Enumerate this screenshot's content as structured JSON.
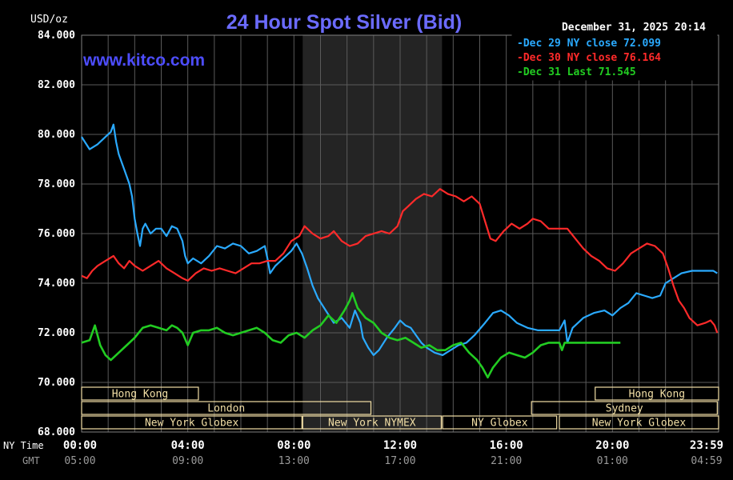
{
  "chart_data": {
    "type": "line",
    "title": "24 Hour Spot Silver (Bid)",
    "units_label": "USD/oz",
    "watermark": "www.kitco.com",
    "timestamp": "December 31, 2025 20:14",
    "ylim": [
      68,
      84
    ],
    "y_ticks": [
      84,
      82,
      80,
      78,
      76,
      74,
      72,
      70,
      68
    ],
    "y_tick_labels": [
      "84.000",
      "82.000",
      "80.000",
      "78.000",
      "76.000",
      "74.000",
      "72.000",
      "70.000",
      "68.000"
    ],
    "x_range_hours": [
      0,
      24
    ],
    "x_ticks_hours": [
      0,
      4,
      8,
      12,
      16,
      20,
      24
    ],
    "x_axis_ny_label": "NY Time",
    "x_axis_gmt_label": "GMT",
    "x_tick_labels_ny": [
      "00:00",
      "04:00",
      "08:00",
      "12:00",
      "16:00",
      "20:00",
      "23:59"
    ],
    "x_tick_labels_gmt": [
      "05:00",
      "09:00",
      "13:00",
      "17:00",
      "21:00",
      "01:00",
      "04:59"
    ],
    "shaded_range_hours": [
      8.33,
      13.58
    ],
    "colors": {
      "background": "#000000",
      "grid": "#5a5a5a",
      "axis_text": "#ffffff",
      "gmt_text": "#9a9a9a",
      "title": "#6b6bff",
      "shade": "#242424",
      "session_bar": "#f2dfa6"
    },
    "series": [
      {
        "name": "Dec 29",
        "legend": "Dec 29 NY close 72.099",
        "color": "#2aaaff",
        "points": [
          [
            0,
            79.9
          ],
          [
            0.3,
            79.4
          ],
          [
            0.6,
            79.6
          ],
          [
            0.9,
            79.9
          ],
          [
            1.1,
            80.1
          ],
          [
            1.2,
            80.4
          ],
          [
            1.3,
            79.7
          ],
          [
            1.4,
            79.2
          ],
          [
            1.6,
            78.6
          ],
          [
            1.8,
            78.0
          ],
          [
            1.9,
            77.5
          ],
          [
            2.0,
            76.6
          ],
          [
            2.1,
            76.0
          ],
          [
            2.2,
            75.5
          ],
          [
            2.3,
            76.2
          ],
          [
            2.4,
            76.4
          ],
          [
            2.6,
            76.0
          ],
          [
            2.8,
            76.2
          ],
          [
            3.0,
            76.2
          ],
          [
            3.2,
            75.9
          ],
          [
            3.4,
            76.3
          ],
          [
            3.6,
            76.2
          ],
          [
            3.8,
            75.7
          ],
          [
            3.9,
            75.1
          ],
          [
            4.0,
            74.8
          ],
          [
            4.2,
            75.0
          ],
          [
            4.5,
            74.8
          ],
          [
            4.8,
            75.1
          ],
          [
            5.1,
            75.5
          ],
          [
            5.4,
            75.4
          ],
          [
            5.7,
            75.6
          ],
          [
            6.0,
            75.5
          ],
          [
            6.3,
            75.2
          ],
          [
            6.6,
            75.3
          ],
          [
            6.9,
            75.5
          ],
          [
            7.0,
            75.0
          ],
          [
            7.1,
            74.4
          ],
          [
            7.3,
            74.7
          ],
          [
            7.6,
            75.0
          ],
          [
            7.9,
            75.3
          ],
          [
            8.1,
            75.6
          ],
          [
            8.3,
            75.2
          ],
          [
            8.5,
            74.6
          ],
          [
            8.7,
            73.9
          ],
          [
            8.9,
            73.4
          ],
          [
            9.2,
            72.9
          ],
          [
            9.5,
            72.4
          ],
          [
            9.8,
            72.6
          ],
          [
            10.1,
            72.2
          ],
          [
            10.3,
            72.9
          ],
          [
            10.5,
            72.4
          ],
          [
            10.6,
            71.8
          ],
          [
            10.8,
            71.4
          ],
          [
            11.0,
            71.1
          ],
          [
            11.2,
            71.3
          ],
          [
            11.5,
            71.8
          ],
          [
            11.8,
            72.2
          ],
          [
            12.0,
            72.5
          ],
          [
            12.2,
            72.3
          ],
          [
            12.4,
            72.2
          ],
          [
            12.6,
            71.9
          ],
          [
            12.8,
            71.6
          ],
          [
            13.0,
            71.4
          ],
          [
            13.3,
            71.2
          ],
          [
            13.6,
            71.1
          ],
          [
            13.9,
            71.3
          ],
          [
            14.2,
            71.5
          ],
          [
            14.5,
            71.6
          ],
          [
            14.8,
            71.9
          ],
          [
            15.2,
            72.4
          ],
          [
            15.5,
            72.8
          ],
          [
            15.8,
            72.9
          ],
          [
            16.1,
            72.7
          ],
          [
            16.4,
            72.4
          ],
          [
            16.8,
            72.2
          ],
          [
            17.2,
            72.1
          ],
          [
            17.6,
            72.1
          ],
          [
            18.0,
            72.1
          ],
          [
            18.2,
            72.5
          ],
          [
            18.3,
            71.6
          ],
          [
            18.5,
            72.2
          ],
          [
            18.9,
            72.6
          ],
          [
            19.3,
            72.8
          ],
          [
            19.7,
            72.9
          ],
          [
            20.0,
            72.7
          ],
          [
            20.3,
            73.0
          ],
          [
            20.6,
            73.2
          ],
          [
            20.9,
            73.6
          ],
          [
            21.2,
            73.5
          ],
          [
            21.5,
            73.4
          ],
          [
            21.8,
            73.5
          ],
          [
            22.0,
            74.0
          ],
          [
            22.3,
            74.2
          ],
          [
            22.6,
            74.4
          ],
          [
            23.0,
            74.5
          ],
          [
            23.4,
            74.5
          ],
          [
            23.8,
            74.5
          ],
          [
            23.95,
            74.4
          ]
        ]
      },
      {
        "name": "Dec 30",
        "legend": "Dec 30 NY close 76.164",
        "color": "#ff2a2a",
        "points": [
          [
            0,
            74.3
          ],
          [
            0.2,
            74.2
          ],
          [
            0.4,
            74.5
          ],
          [
            0.6,
            74.7
          ],
          [
            0.9,
            74.9
          ],
          [
            1.2,
            75.1
          ],
          [
            1.4,
            74.8
          ],
          [
            1.6,
            74.6
          ],
          [
            1.8,
            74.9
          ],
          [
            2.0,
            74.7
          ],
          [
            2.3,
            74.5
          ],
          [
            2.6,
            74.7
          ],
          [
            2.9,
            74.9
          ],
          [
            3.2,
            74.6
          ],
          [
            3.5,
            74.4
          ],
          [
            3.8,
            74.2
          ],
          [
            4.0,
            74.1
          ],
          [
            4.3,
            74.4
          ],
          [
            4.6,
            74.6
          ],
          [
            4.9,
            74.5
          ],
          [
            5.2,
            74.6
          ],
          [
            5.5,
            74.5
          ],
          [
            5.8,
            74.4
          ],
          [
            6.1,
            74.6
          ],
          [
            6.4,
            74.8
          ],
          [
            6.7,
            74.8
          ],
          [
            7.0,
            74.9
          ],
          [
            7.3,
            74.9
          ],
          [
            7.6,
            75.2
          ],
          [
            7.9,
            75.7
          ],
          [
            8.2,
            75.9
          ],
          [
            8.4,
            76.3
          ],
          [
            8.7,
            76.0
          ],
          [
            9.0,
            75.8
          ],
          [
            9.3,
            75.9
          ],
          [
            9.5,
            76.1
          ],
          [
            9.8,
            75.7
          ],
          [
            10.1,
            75.5
          ],
          [
            10.4,
            75.6
          ],
          [
            10.7,
            75.9
          ],
          [
            11.0,
            76.0
          ],
          [
            11.3,
            76.1
          ],
          [
            11.6,
            76.0
          ],
          [
            11.9,
            76.3
          ],
          [
            12.1,
            76.9
          ],
          [
            12.3,
            77.1
          ],
          [
            12.6,
            77.4
          ],
          [
            12.9,
            77.6
          ],
          [
            13.2,
            77.5
          ],
          [
            13.5,
            77.8
          ],
          [
            13.8,
            77.6
          ],
          [
            14.1,
            77.5
          ],
          [
            14.4,
            77.3
          ],
          [
            14.7,
            77.5
          ],
          [
            15.0,
            77.2
          ],
          [
            15.2,
            76.5
          ],
          [
            15.4,
            75.8
          ],
          [
            15.6,
            75.7
          ],
          [
            15.9,
            76.1
          ],
          [
            16.2,
            76.4
          ],
          [
            16.5,
            76.2
          ],
          [
            16.8,
            76.4
          ],
          [
            17.0,
            76.6
          ],
          [
            17.3,
            76.5
          ],
          [
            17.6,
            76.2
          ],
          [
            18.0,
            76.2
          ],
          [
            18.3,
            76.2
          ],
          [
            18.6,
            75.8
          ],
          [
            18.9,
            75.4
          ],
          [
            19.2,
            75.1
          ],
          [
            19.5,
            74.9
          ],
          [
            19.8,
            74.6
          ],
          [
            20.1,
            74.5
          ],
          [
            20.4,
            74.8
          ],
          [
            20.7,
            75.2
          ],
          [
            21.0,
            75.4
          ],
          [
            21.3,
            75.6
          ],
          [
            21.6,
            75.5
          ],
          [
            21.9,
            75.2
          ],
          [
            22.1,
            74.6
          ],
          [
            22.3,
            73.9
          ],
          [
            22.5,
            73.3
          ],
          [
            22.7,
            73.0
          ],
          [
            22.9,
            72.6
          ],
          [
            23.2,
            72.3
          ],
          [
            23.5,
            72.4
          ],
          [
            23.7,
            72.5
          ],
          [
            23.85,
            72.3
          ],
          [
            23.95,
            72.0
          ]
        ]
      },
      {
        "name": "Dec 31",
        "legend": "Dec 31 Last 71.545",
        "color": "#22cc22",
        "points": [
          [
            0,
            71.6
          ],
          [
            0.3,
            71.7
          ],
          [
            0.5,
            72.3
          ],
          [
            0.7,
            71.5
          ],
          [
            0.9,
            71.1
          ],
          [
            1.1,
            70.9
          ],
          [
            1.4,
            71.2
          ],
          [
            1.7,
            71.5
          ],
          [
            2.0,
            71.8
          ],
          [
            2.3,
            72.2
          ],
          [
            2.6,
            72.3
          ],
          [
            2.9,
            72.2
          ],
          [
            3.2,
            72.1
          ],
          [
            3.4,
            72.3
          ],
          [
            3.6,
            72.2
          ],
          [
            3.8,
            72.0
          ],
          [
            4.0,
            71.5
          ],
          [
            4.2,
            72.0
          ],
          [
            4.5,
            72.1
          ],
          [
            4.8,
            72.1
          ],
          [
            5.1,
            72.2
          ],
          [
            5.4,
            72.0
          ],
          [
            5.7,
            71.9
          ],
          [
            6.0,
            72.0
          ],
          [
            6.3,
            72.1
          ],
          [
            6.6,
            72.2
          ],
          [
            6.9,
            72.0
          ],
          [
            7.2,
            71.7
          ],
          [
            7.5,
            71.6
          ],
          [
            7.8,
            71.9
          ],
          [
            8.1,
            72.0
          ],
          [
            8.4,
            71.8
          ],
          [
            8.7,
            72.1
          ],
          [
            9.0,
            72.3
          ],
          [
            9.3,
            72.7
          ],
          [
            9.6,
            72.4
          ],
          [
            9.9,
            72.9
          ],
          [
            10.1,
            73.3
          ],
          [
            10.2,
            73.6
          ],
          [
            10.4,
            73.0
          ],
          [
            10.7,
            72.6
          ],
          [
            11.0,
            72.4
          ],
          [
            11.3,
            72.0
          ],
          [
            11.6,
            71.8
          ],
          [
            11.9,
            71.7
          ],
          [
            12.2,
            71.8
          ],
          [
            12.5,
            71.6
          ],
          [
            12.8,
            71.4
          ],
          [
            13.1,
            71.5
          ],
          [
            13.4,
            71.3
          ],
          [
            13.7,
            71.3
          ],
          [
            14.0,
            71.5
          ],
          [
            14.3,
            71.6
          ],
          [
            14.6,
            71.2
          ],
          [
            14.9,
            70.9
          ],
          [
            15.1,
            70.6
          ],
          [
            15.3,
            70.2
          ],
          [
            15.5,
            70.6
          ],
          [
            15.8,
            71.0
          ],
          [
            16.1,
            71.2
          ],
          [
            16.4,
            71.1
          ],
          [
            16.7,
            71.0
          ],
          [
            17.0,
            71.2
          ],
          [
            17.3,
            71.5
          ],
          [
            17.6,
            71.6
          ],
          [
            18.0,
            71.6
          ],
          [
            18.1,
            71.3
          ],
          [
            18.2,
            71.6
          ],
          [
            18.6,
            71.6
          ],
          [
            19.0,
            71.6
          ],
          [
            19.5,
            71.6
          ],
          [
            20.0,
            71.6
          ],
          [
            20.3,
            71.6
          ]
        ]
      }
    ],
    "session_rows": [
      [
        {
          "label": "Hong Kong",
          "start": 0,
          "end": 4.4
        },
        {
          "label": "Hong Kong",
          "start": 19.35,
          "end": 24
        }
      ],
      [
        {
          "label": "London",
          "start": 0,
          "end": 10.9
        },
        {
          "label": "Sydney",
          "start": 16.95,
          "end": 23.95
        }
      ],
      [
        {
          "label": "New York Globex",
          "start": 0,
          "end": 8.3
        },
        {
          "label": "New York NYMEX",
          "start": 8.33,
          "end": 13.55
        },
        {
          "label": "NY Globex",
          "start": 13.6,
          "end": 17.9
        },
        {
          "label": "New York Globex",
          "start": 18.0,
          "end": 24
        }
      ]
    ]
  }
}
